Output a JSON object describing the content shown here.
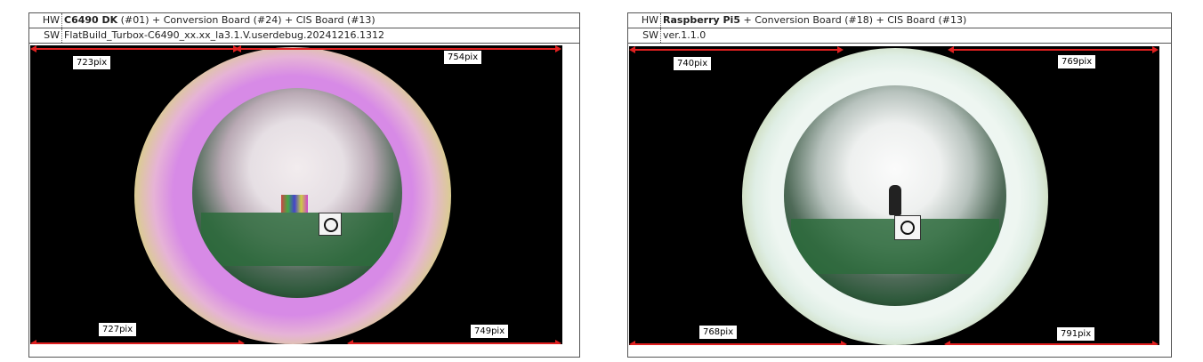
{
  "panels": [
    {
      "hw_key": "HW",
      "hw_bold": "C6490 DK",
      "hw_rest": " (#01) + Conversion Board (#24) + CIS Board (#13)",
      "sw_key": "SW",
      "sw_value": "FlatBuild_Turbox-C6490_xx.xx_la3.1.V.userdebug.20241216.1312",
      "measurements": {
        "top_left": "723pix",
        "top_right": "754pix",
        "bottom_left": "727pix",
        "bottom_right": "749pix"
      },
      "ring_color": "#d98ee8"
    },
    {
      "hw_key": "HW",
      "hw_bold": "Raspberry Pi5",
      "hw_rest": " + Conversion Board (#18) + CIS Board (#13)",
      "sw_key": "SW",
      "sw_value": "ver.1.1.0",
      "measurements": {
        "top_left": "740pix",
        "top_right": "769pix",
        "bottom_left": "768pix",
        "bottom_right": "791pix"
      },
      "ring_color": "#d9ecd9"
    }
  ]
}
